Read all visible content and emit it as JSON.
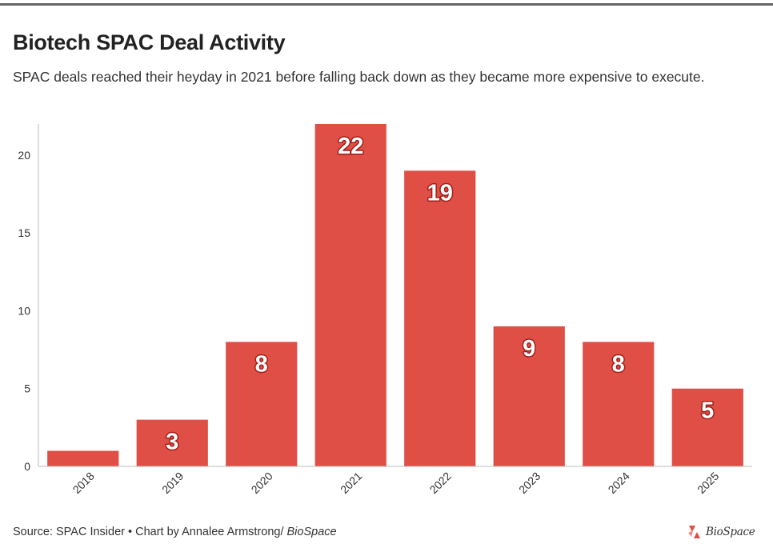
{
  "title": "Biotech SPAC Deal Activity",
  "subtitle": "SPAC deals reached their heyday in 2021 before falling back down as they became more expensive to execute.",
  "footer": {
    "source_prefix": "Source: SPAC Insider • Chart by Annalee Armstrong/ ",
    "source_brand": "BioSpace",
    "logo_text": "BioSpace"
  },
  "colors": {
    "bar": "#e04f46",
    "label_outline": "#a01e18",
    "axis": "#bbbbbb",
    "text": "#333333"
  },
  "chart_data": {
    "type": "bar",
    "title": "Biotech SPAC Deal Activity",
    "xlabel": "",
    "ylabel": "",
    "categories": [
      "2018",
      "2019",
      "2020",
      "2021",
      "2022",
      "2023",
      "2024",
      "2025"
    ],
    "values": [
      1,
      3,
      8,
      22,
      19,
      9,
      8,
      5
    ],
    "data_labels": [
      "",
      "3",
      "8",
      "22",
      "19",
      "9",
      "8",
      "5"
    ],
    "ylim": [
      0,
      22
    ],
    "yticks": [
      0,
      5,
      10,
      15,
      20
    ],
    "grid": false
  }
}
